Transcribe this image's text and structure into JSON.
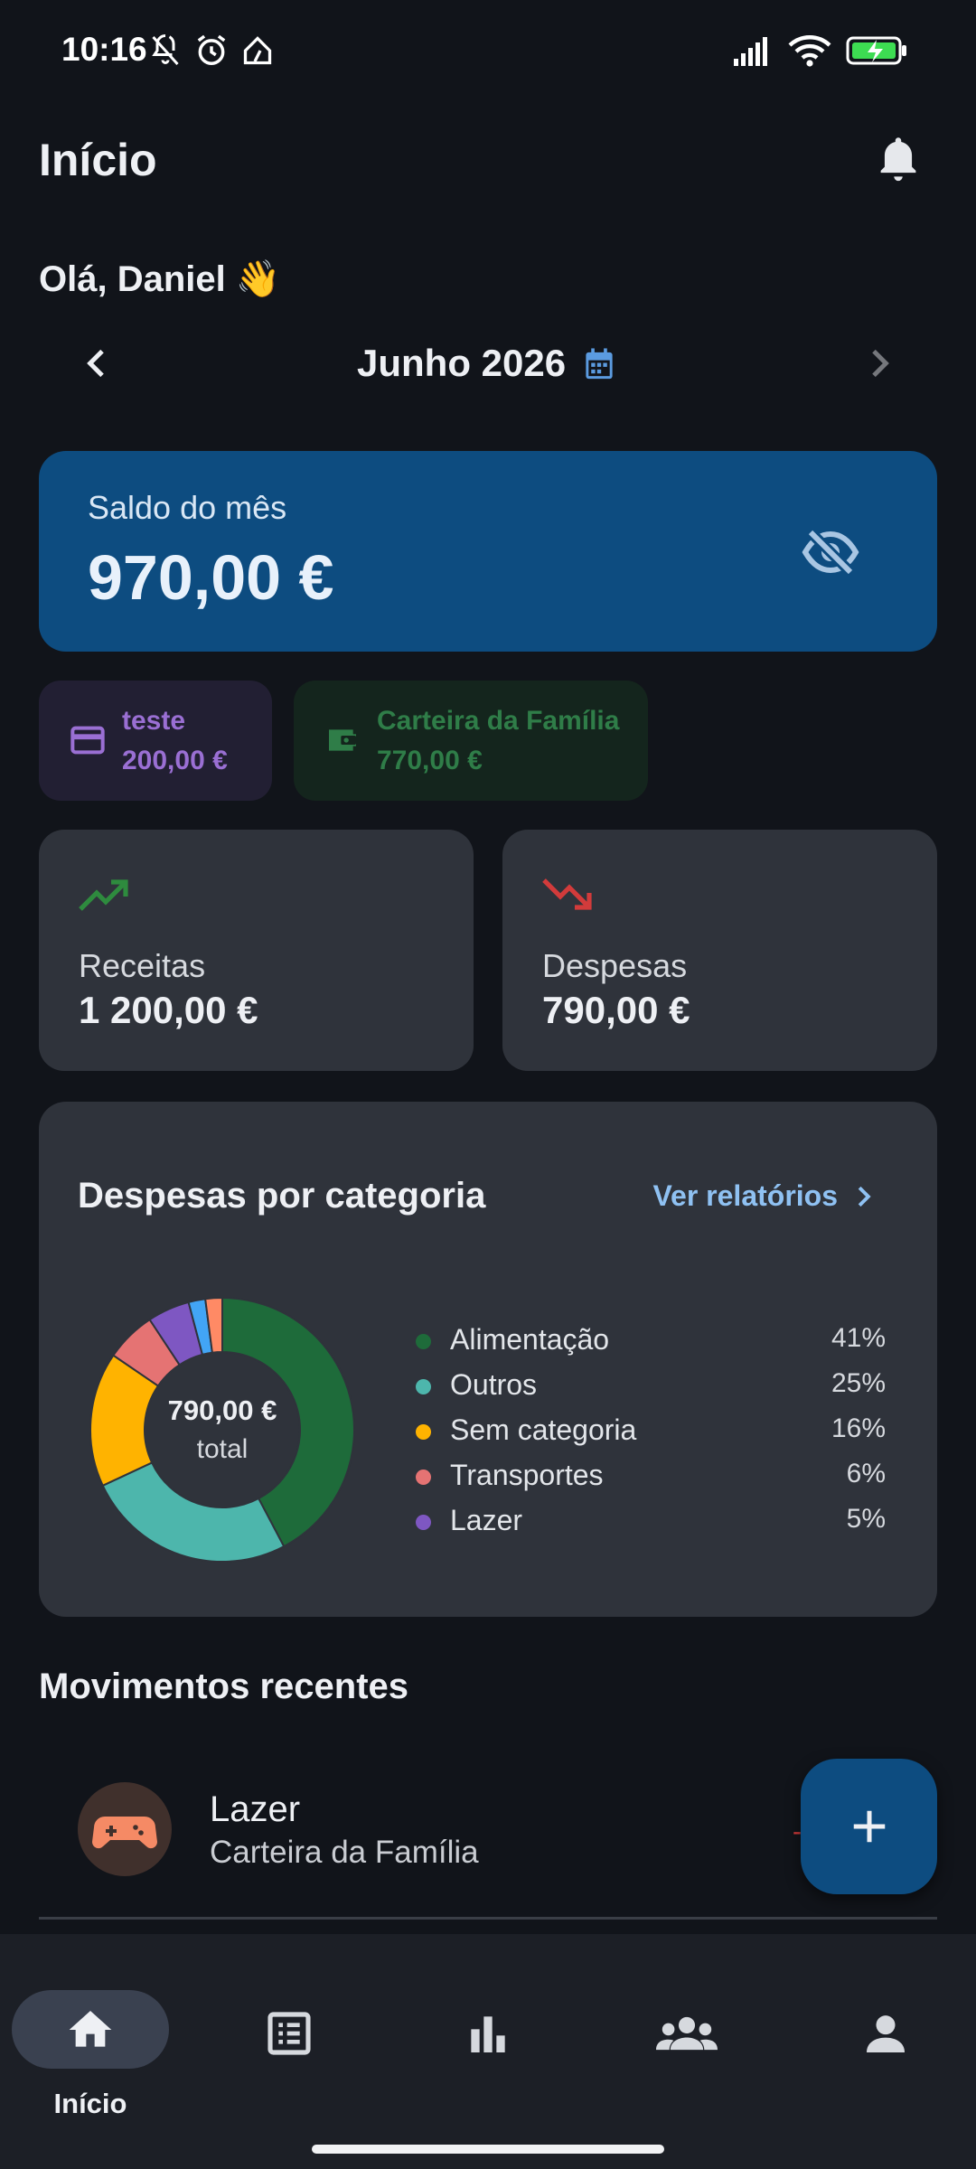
{
  "status_bar": {
    "time": "10:16"
  },
  "header": {
    "title": "Início"
  },
  "greeting": "Olá, Daniel 👋",
  "month_nav": {
    "label": "Junho 2026"
  },
  "balance": {
    "label": "Saldo do mês",
    "value": "970,00 €"
  },
  "wallets": [
    {
      "name": "teste",
      "value": "200,00 €",
      "color": "#9a6fd3"
    },
    {
      "name": "Carteira da Família",
      "value": "770,00 €",
      "color": "#2f7d48"
    }
  ],
  "stats": {
    "income": {
      "label": "Receitas",
      "value": "1 200,00 €",
      "color": "#2e8b3e"
    },
    "expenses": {
      "label": "Despesas",
      "value": "790,00 €",
      "color": "#d23b3b"
    }
  },
  "categories_card": {
    "title": "Despesas por categoria",
    "link": "Ver relatórios",
    "center_value": "790,00 €",
    "center_label": "total"
  },
  "chart_data": {
    "type": "pie",
    "series": [
      {
        "name": "Alimentação",
        "value": 41,
        "pct": "41%",
        "color": "#1e6b3a",
        "in_legend": true
      },
      {
        "name": "Outros",
        "value": 25,
        "pct": "25%",
        "color": "#4db6ac",
        "in_legend": true
      },
      {
        "name": "Sem categoria",
        "value": 16,
        "pct": "16%",
        "color": "#ffb300",
        "in_legend": true
      },
      {
        "name": "Transportes",
        "value": 6,
        "pct": "6%",
        "color": "#e57373",
        "in_legend": true
      },
      {
        "name": "Lazer",
        "value": 5,
        "pct": "5%",
        "color": "#7e57c2",
        "in_legend": true
      },
      {
        "name": "",
        "value": 2,
        "pct": "",
        "color": "#42a5f5",
        "in_legend": false
      },
      {
        "name": "",
        "value": 2,
        "pct": "",
        "color": "#ff8a65",
        "in_legend": false
      }
    ]
  },
  "recent": {
    "title": "Movimentos recentes",
    "items": [
      {
        "title": "Lazer",
        "subtitle": "Carteira da Família",
        "amount": "-"
      }
    ]
  },
  "bottom_nav": {
    "home_label": "Início"
  }
}
